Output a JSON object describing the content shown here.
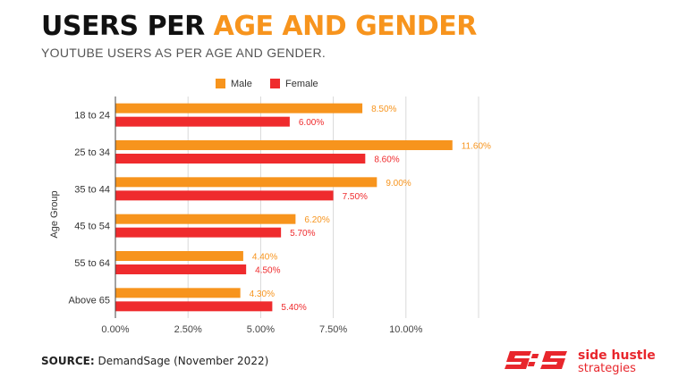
{
  "header": {
    "title_part1": "USERS PER ",
    "title_part2": "AGE AND GENDER",
    "subtitle": "YOUTUBE USERS AS PER AGE AND GENDER."
  },
  "footer": {
    "source_label": "SOURCE:",
    "source_text": " DemandSage (November 2022)"
  },
  "logo": {
    "line1": "side hustle",
    "line2": "strategies"
  },
  "colors": {
    "male": "#f7941d",
    "female": "#ef2b2d",
    "accent": "#f7941d",
    "brand": "#e8262c"
  },
  "chart_data": {
    "type": "bar",
    "orientation": "horizontal",
    "categories": [
      "18 to 24",
      "25 to 34",
      "35 to 44",
      "45 to 54",
      "55 to 64",
      "Above 65"
    ],
    "series": [
      {
        "name": "Male",
        "values": [
          8.5,
          11.6,
          9.0,
          6.2,
          4.4,
          4.3
        ],
        "labels": [
          "8.50%",
          "11.60%",
          "9.00%",
          "6.20%",
          "4.40%",
          "4.30%"
        ]
      },
      {
        "name": "Female",
        "values": [
          6.0,
          8.6,
          7.5,
          5.7,
          4.5,
          5.4
        ],
        "labels": [
          "6.00%",
          "8.60%",
          "7.50%",
          "5.70%",
          "4.50%",
          "5.40%"
        ]
      }
    ],
    "ylabel": "Age Group",
    "xlabel": "",
    "xlim": [
      0,
      12.5
    ],
    "xticks": [
      0,
      2.5,
      5,
      7.5,
      10,
      12.5
    ],
    "xtick_labels": [
      "0.00%",
      "2.50%",
      "5.00%",
      "7.50%",
      "10.00%",
      ""
    ],
    "grid": "vertical",
    "legend": "top-center"
  }
}
